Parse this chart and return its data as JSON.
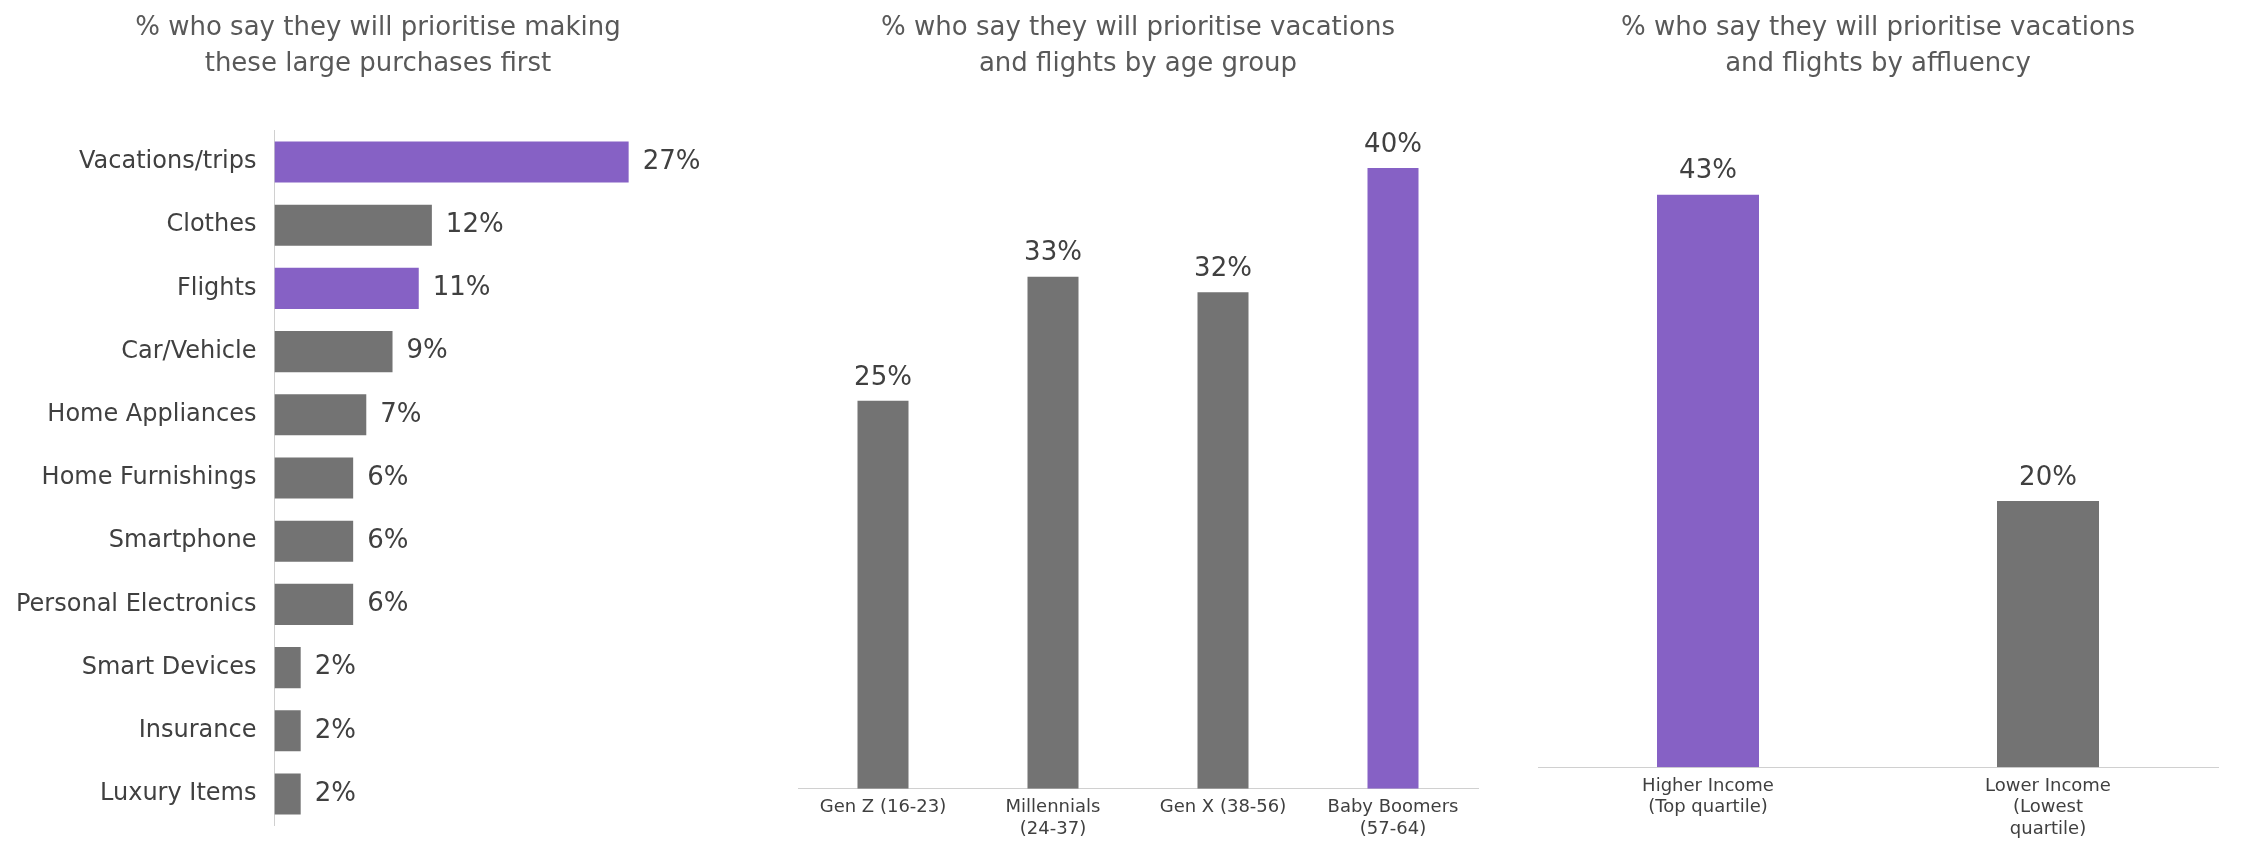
{
  "chart_data": [
    {
      "type": "bar",
      "orientation": "horizontal",
      "title": "% who say they will prioritise making these large purchases first",
      "categories": [
        "Vacations/trips",
        "Clothes",
        "Flights",
        "Car/Vehicle",
        "Home Appliances",
        "Home Furnishings",
        "Smartphone",
        "Personal Electronics",
        "Smart Devices",
        "Insurance",
        "Luxury Items"
      ],
      "values": [
        27,
        12,
        11,
        9,
        7,
        6,
        6,
        6,
        2,
        2,
        2
      ],
      "value_labels": [
        "27%",
        "12%",
        "11%",
        "9%",
        "7%",
        "6%",
        "6%",
        "6%",
        "2%",
        "2%",
        "2%"
      ],
      "colors": [
        "#8661c5",
        "#737373",
        "#8661c5",
        "#737373",
        "#737373",
        "#737373",
        "#737373",
        "#737373",
        "#737373",
        "#737373",
        "#737373"
      ],
      "grid": false,
      "legend": false,
      "tick_labels": "y"
    },
    {
      "type": "bar",
      "title": "% who say they will prioritise vacations and flights by age group",
      "categories": [
        "Gen Z (16-23)",
        "Millennials (24-37)",
        "Gen X (38-56)",
        "Baby Boomers (57-64)"
      ],
      "values": [
        25,
        33,
        32,
        40
      ],
      "value_labels": [
        "25%",
        "33%",
        "32%",
        "40%"
      ],
      "colors": [
        "#737373",
        "#737373",
        "#737373",
        "#8661c5"
      ],
      "grid": false,
      "legend": false,
      "tick_labels": "x"
    },
    {
      "type": "bar",
      "title": "% who say they will prioritise vacations and flights by affluency",
      "categories": [
        "Higher Income (Top quartile)",
        "Lower Income (Lowest quartile)"
      ],
      "values": [
        43,
        20
      ],
      "value_labels": [
        "43%",
        "20%"
      ],
      "colors": [
        "#8661c5",
        "#737373"
      ],
      "grid": false,
      "legend": false,
      "tick_labels": "x"
    }
  ]
}
